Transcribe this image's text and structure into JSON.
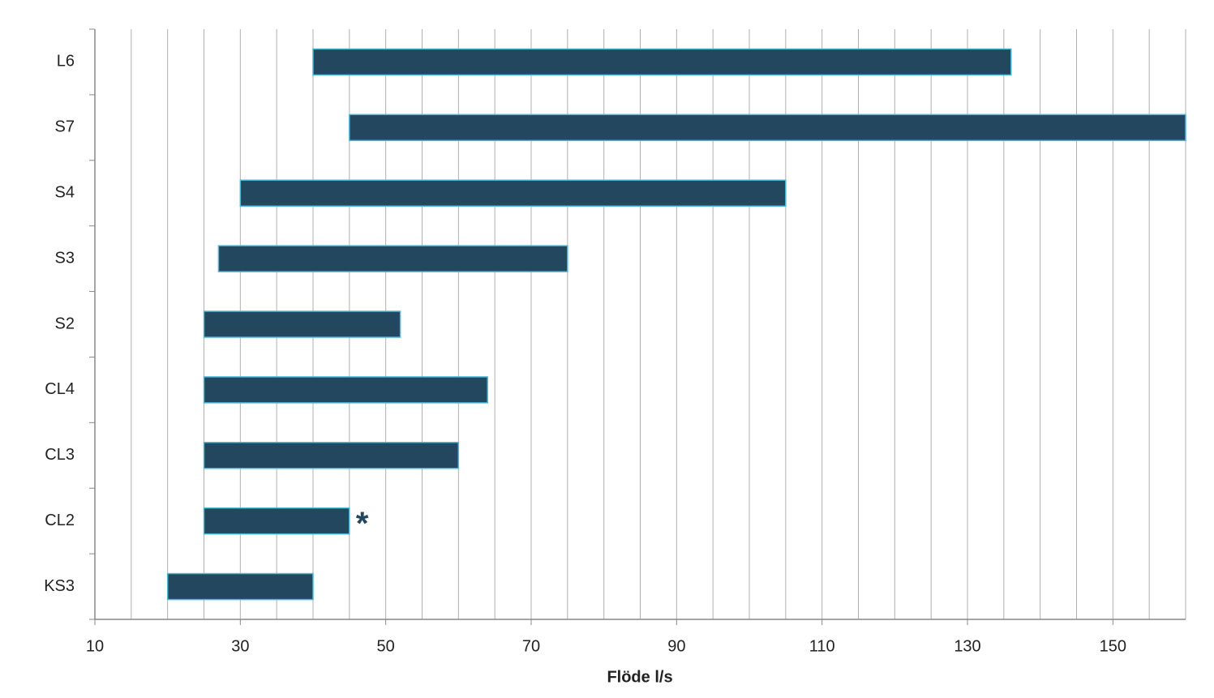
{
  "chart_data": {
    "type": "rangebar",
    "x_label": "Flöde l/s",
    "categories": [
      "L6",
      "S7",
      "S4",
      "S3",
      "S2",
      "CL4",
      "CL3",
      "CL2",
      "KS3"
    ],
    "start": [
      40,
      45,
      30,
      27,
      25,
      25,
      25,
      25,
      20
    ],
    "end": [
      136,
      160,
      105,
      75,
      52,
      64,
      60,
      45,
      40
    ],
    "color": "#22475f",
    "edge_color": "#4bb8d8",
    "xlim": [
      10,
      160
    ],
    "xticks": [
      10,
      30,
      50,
      70,
      90,
      110,
      130,
      150
    ],
    "minor_xticks": [
      15,
      20,
      25,
      35,
      40,
      45,
      55,
      60,
      65,
      75,
      80,
      85,
      95,
      100,
      105,
      115,
      120,
      125,
      135,
      140,
      145,
      155,
      160
    ],
    "grid": true,
    "annotations": [
      {
        "text": "*",
        "category": "CL2"
      }
    ]
  }
}
